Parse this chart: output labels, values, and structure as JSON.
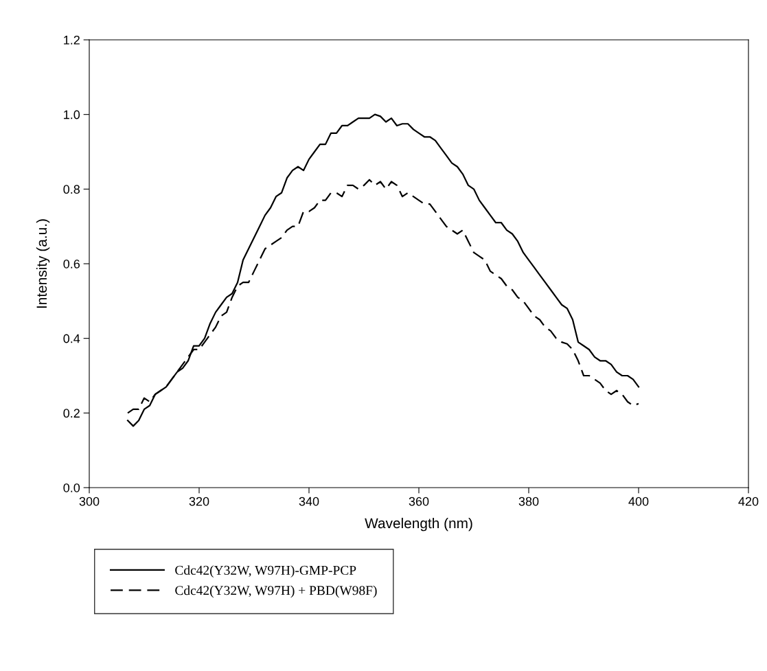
{
  "chart_data": {
    "type": "line",
    "xlabel": "Wavelength (nm)",
    "ylabel": "Intensity (a.u.)",
    "x": [
      307,
      308,
      309,
      310,
      311,
      312,
      313,
      314,
      315,
      316,
      317,
      318,
      319,
      320,
      321,
      322,
      323,
      324,
      325,
      326,
      327,
      328,
      329,
      330,
      331,
      332,
      333,
      334,
      335,
      336,
      337,
      338,
      339,
      340,
      341,
      342,
      343,
      344,
      345,
      346,
      347,
      348,
      349,
      350,
      351,
      352,
      353,
      354,
      355,
      356,
      357,
      358,
      359,
      360,
      361,
      362,
      363,
      364,
      365,
      366,
      367,
      368,
      369,
      370,
      371,
      372,
      373,
      374,
      375,
      376,
      377,
      378,
      379,
      380,
      381,
      382,
      383,
      384,
      385,
      386,
      387,
      388,
      389,
      390,
      391,
      392,
      393,
      394,
      395,
      396,
      397,
      398,
      399,
      400
    ],
    "series": [
      {
        "name": "Cdc42(Y32W, W97H)-GMP-PCP",
        "color": "#000000",
        "line_style": "solid",
        "values": [
          0.18,
          0.165,
          0.18,
          0.21,
          0.22,
          0.25,
          0.26,
          0.27,
          0.29,
          0.31,
          0.32,
          0.34,
          0.38,
          0.38,
          0.4,
          0.44,
          0.47,
          0.49,
          0.51,
          0.52,
          0.55,
          0.61,
          0.64,
          0.67,
          0.7,
          0.73,
          0.75,
          0.78,
          0.79,
          0.83,
          0.85,
          0.86,
          0.85,
          0.88,
          0.9,
          0.92,
          0.92,
          0.95,
          0.95,
          0.97,
          0.97,
          0.98,
          0.99,
          0.99,
          0.99,
          1.0,
          0.995,
          0.98,
          0.99,
          0.97,
          0.975,
          0.975,
          0.96,
          0.95,
          0.94,
          0.94,
          0.93,
          0.91,
          0.89,
          0.87,
          0.86,
          0.84,
          0.81,
          0.8,
          0.77,
          0.75,
          0.73,
          0.71,
          0.71,
          0.69,
          0.68,
          0.66,
          0.63,
          0.61,
          0.59,
          0.57,
          0.55,
          0.53,
          0.51,
          0.49,
          0.48,
          0.45,
          0.39,
          0.38,
          0.37,
          0.35,
          0.34,
          0.34,
          0.33,
          0.31,
          0.3,
          0.3,
          0.29,
          0.27
        ]
      },
      {
        "name": "Cdc42(Y32W, W97H) + PBD(W98F)",
        "color": "#000000",
        "line_style": "dashed",
        "values": [
          0.2,
          0.21,
          0.21,
          0.24,
          0.23,
          0.25,
          0.26,
          0.27,
          0.29,
          0.31,
          0.33,
          0.35,
          0.37,
          0.37,
          0.39,
          0.41,
          0.43,
          0.46,
          0.47,
          0.51,
          0.54,
          0.55,
          0.55,
          0.58,
          0.61,
          0.64,
          0.65,
          0.66,
          0.67,
          0.69,
          0.7,
          0.7,
          0.74,
          0.74,
          0.75,
          0.77,
          0.77,
          0.79,
          0.79,
          0.78,
          0.81,
          0.81,
          0.8,
          0.81,
          0.825,
          0.81,
          0.82,
          0.8,
          0.82,
          0.81,
          0.78,
          0.79,
          0.78,
          0.77,
          0.76,
          0.76,
          0.74,
          0.72,
          0.7,
          0.69,
          0.68,
          0.69,
          0.66,
          0.63,
          0.62,
          0.61,
          0.58,
          0.57,
          0.56,
          0.54,
          0.53,
          0.51,
          0.5,
          0.48,
          0.46,
          0.45,
          0.43,
          0.42,
          0.4,
          0.39,
          0.385,
          0.37,
          0.34,
          0.3,
          0.3,
          0.29,
          0.28,
          0.26,
          0.25,
          0.26,
          0.25,
          0.23,
          0.22,
          0.225
        ]
      }
    ],
    "xlim": [
      300,
      420
    ],
    "xticks": [
      300,
      320,
      340,
      360,
      380,
      400,
      420
    ],
    "ylim": [
      0,
      1.2
    ],
    "yticks": [
      {
        "value": 0,
        "label": "0.0"
      },
      {
        "value": 0.2,
        "label": "0.2"
      },
      {
        "value": 0.4,
        "label": "0.4"
      },
      {
        "value": 0.6,
        "label": "0.6"
      },
      {
        "value": 0.8,
        "label": "0.8"
      },
      {
        "value": 1.0,
        "label": "1.0"
      },
      {
        "value": 1.2,
        "label": "1.2"
      }
    ],
    "grid": false,
    "legend": "bottom",
    "marker": "none"
  }
}
